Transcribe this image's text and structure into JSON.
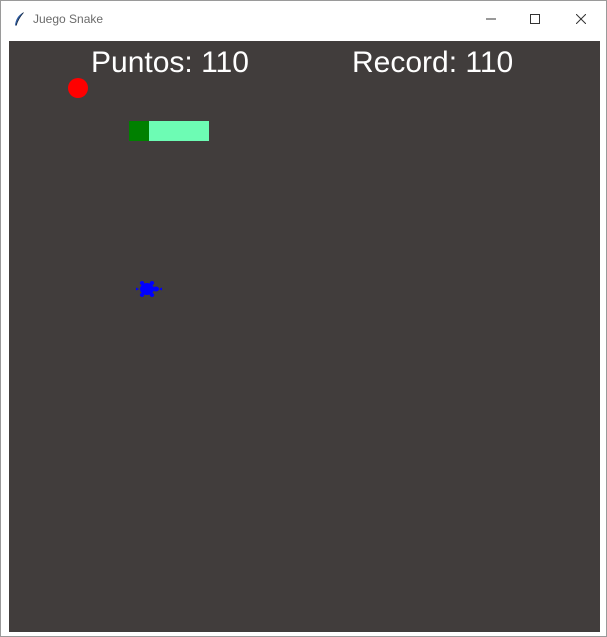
{
  "window": {
    "title": "Juego Snake",
    "app_icon": "feather-icon",
    "controls": [
      "minimize-icon",
      "maximize-icon",
      "close-icon"
    ]
  },
  "game": {
    "background": "#413d3c",
    "score_text": "Puntos: 110",
    "record_text": "Record: 110",
    "food_color": "#ff0000",
    "snake_head_color": "#008000",
    "snake_body_color": "#6dfcb4",
    "snake_segments": 4,
    "turtle_color": "#0000ff"
  }
}
